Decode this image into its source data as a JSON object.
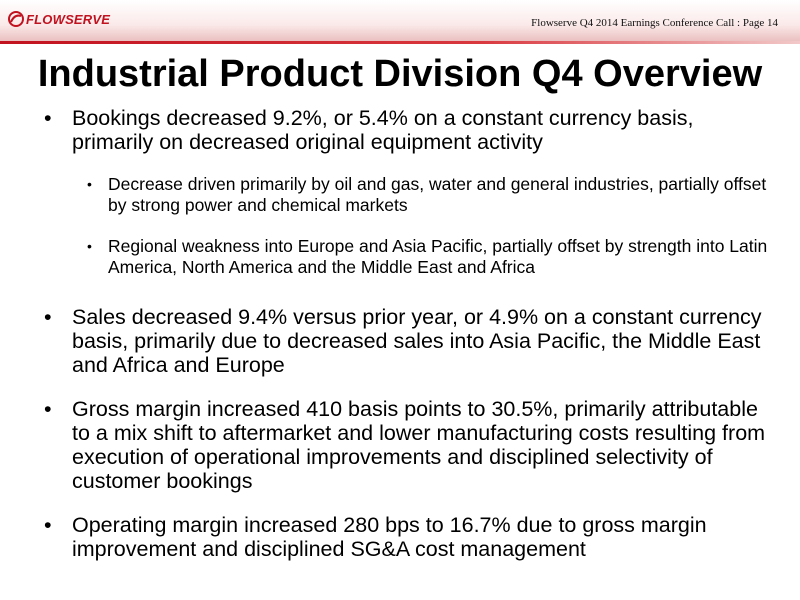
{
  "header": {
    "logo_text": "FLOWSERVE",
    "page_label": "Flowserve Q4 2014 Earnings Conference Call  : Page 14"
  },
  "slide": {
    "title": "Industrial Product Division Q4 Overview",
    "bullets": [
      {
        "text": "Bookings decreased 9.2%, or 5.4% on a constant currency basis, primarily on decreased original equipment activity"
      },
      {
        "text": "Decrease driven primarily by oil and gas, water and general industries, partially offset by strong power and chemical markets"
      },
      {
        "text": "Regional weakness into Europe and Asia Pacific, partially offset by strength into Latin America, North America and the Middle East and Africa"
      },
      {
        "text": "Sales decreased 9.4% versus prior year, or 4.9% on a constant currency basis, primarily due to decreased sales into Asia Pacific, the Middle East and Africa and Europe"
      },
      {
        "text": "Gross margin increased 410 basis points to 30.5%, primarily attributable to a mix shift to aftermarket and lower manufacturing costs resulting from execution of operational improvements and disciplined selectivity of customer bookings"
      },
      {
        "text": "Operating margin increased 280 bps to 16.7% due to gross margin improvement and disciplined SG&A cost management"
      }
    ]
  },
  "colors": {
    "brand_red": "#c1121f"
  },
  "icons": {
    "logo": "flowserve-swirl-icon",
    "bullet": "bullet-dot-icon"
  }
}
